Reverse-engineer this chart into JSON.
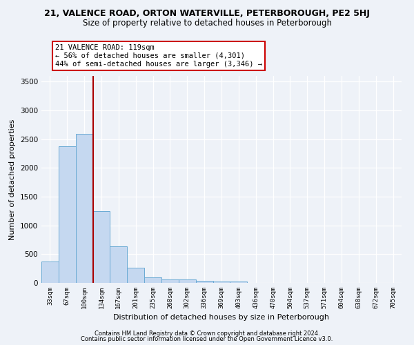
{
  "title1": "21, VALENCE ROAD, ORTON WATERVILLE, PETERBOROUGH, PE2 5HJ",
  "title2": "Size of property relative to detached houses in Peterborough",
  "xlabel": "Distribution of detached houses by size in Peterborough",
  "ylabel": "Number of detached properties",
  "categories": [
    "33sqm",
    "67sqm",
    "100sqm",
    "134sqm",
    "167sqm",
    "201sqm",
    "235sqm",
    "268sqm",
    "302sqm",
    "336sqm",
    "369sqm",
    "403sqm",
    "436sqm",
    "470sqm",
    "504sqm",
    "537sqm",
    "571sqm",
    "604sqm",
    "638sqm",
    "672sqm",
    "705sqm"
  ],
  "values": [
    375,
    2380,
    2590,
    1250,
    640,
    265,
    100,
    60,
    55,
    40,
    20,
    25,
    0,
    0,
    0,
    0,
    0,
    0,
    0,
    0,
    0
  ],
  "bar_color": "#c5d8f0",
  "bar_edge_color": "#6aaad4",
  "property_line_x": 2.5,
  "property_line_color": "#aa0000",
  "annotation_text": "21 VALENCE ROAD: 119sqm\n← 56% of detached houses are smaller (4,301)\n44% of semi-detached houses are larger (3,346) →",
  "annotation_box_color": "#ffffff",
  "annotation_box_edge_color": "#cc0000",
  "ylim": [
    0,
    3600
  ],
  "yticks": [
    0,
    500,
    1000,
    1500,
    2000,
    2500,
    3000,
    3500
  ],
  "footer1": "Contains HM Land Registry data © Crown copyright and database right 2024.",
  "footer2": "Contains public sector information licensed under the Open Government Licence v3.0.",
  "bg_color": "#eef2f8",
  "grid_color": "#ffffff",
  "title1_fontsize": 9,
  "title2_fontsize": 8.5
}
